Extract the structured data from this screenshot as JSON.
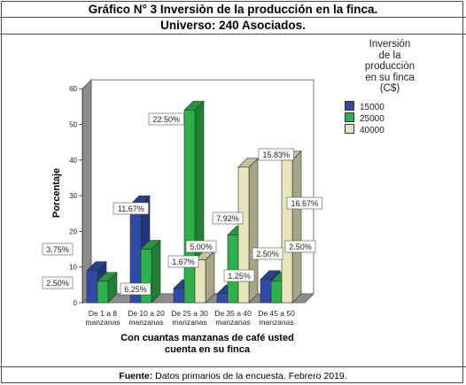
{
  "header": {
    "line1": "Gráfico N° 3 Inversiòn de la producción en la finca.",
    "line2": "Universo: 240 Asociados."
  },
  "footer": {
    "label": "Fuente:",
    "text": "Datos primarios de la encuesta. Febrero 2019."
  },
  "chart_data": {
    "type": "bar",
    "style": "3d-clustered",
    "ylabel": "Porcentaje",
    "xlabel_line1": "Con cuantas manzanas de café usted",
    "xlabel_line2": "cuenta en su finca",
    "ylim": [
      0,
      60
    ],
    "yticks": [
      "0",
      "10",
      "20",
      "30",
      "40",
      "50",
      "60"
    ],
    "categories": [
      [
        "De 1 a 8",
        "manzanas"
      ],
      [
        "De 10 a 20",
        "manzanas"
      ],
      [
        "De 25 a 30",
        "manzanas"
      ],
      [
        "De 35 a 40",
        "manzanas"
      ],
      [
        "De 45 a 50",
        "manzanas"
      ]
    ],
    "legend_title": [
      "Inversión",
      "de la",
      "producciòn",
      "en su finca",
      "(C$)"
    ],
    "legend_placement": "right",
    "series": [
      {
        "name": "15000",
        "color": "#2e4ba8",
        "values": [
          9,
          27.5,
          4,
          2.5,
          6.5
        ],
        "labels": [
          "3.75%",
          "11.67%",
          "1.67%",
          "1.25%",
          "2.50%"
        ]
      },
      {
        "name": "25000",
        "color": "#2bb24a",
        "values": [
          6,
          15,
          54,
          19,
          6
        ],
        "labels": [
          "2.50%",
          "6.25%",
          "22.50%",
          "7.92%",
          ""
        ]
      },
      {
        "name": "40000",
        "color": "#e8e4bb",
        "values": [
          0,
          0,
          12,
          38,
          40
        ],
        "labels": [
          "",
          "",
          "5.00%",
          "15.83%",
          "16.67%"
        ]
      }
    ],
    "extra_labels": [
      "2.50%"
    ]
  }
}
